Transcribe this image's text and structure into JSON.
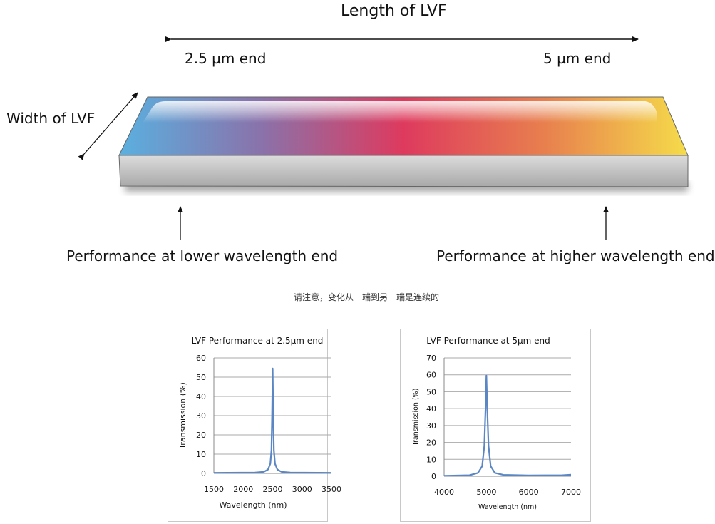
{
  "diagram": {
    "length_label": "Length of LVF",
    "width_label": "Width of LVF",
    "left_end_label": "2.5 µm end",
    "right_end_label": "5 µm end",
    "lower_perf_label": "Performance at lower wavelength end",
    "higher_perf_label": "Performance at higher wavelength end",
    "note": "请注意，变化从一端到另一端是连续的",
    "gradient_colors": [
      "#5ab0e0",
      "#8a72aa",
      "#de3a5e",
      "#e8804e",
      "#f5dc4a"
    ]
  },
  "chart_data": [
    {
      "type": "line",
      "title": "LVF Performance at 2.5µm end",
      "xlabel": "Wavelength (nm)",
      "ylabel": "Transmission (%)",
      "xlim": [
        1500,
        3500
      ],
      "ylim": [
        0,
        60
      ],
      "xticks": [
        "1500",
        "2000",
        "2500",
        "3000",
        "3500"
      ],
      "yticks": [
        "0",
        "10",
        "20",
        "30",
        "40",
        "50",
        "60"
      ],
      "grid": true,
      "color": "#5b86c4",
      "x": [
        1500,
        2200,
        2350,
        2420,
        2460,
        2480,
        2490,
        2500,
        2510,
        2520,
        2540,
        2580,
        2650,
        2800,
        3500
      ],
      "y": [
        0.3,
        0.4,
        0.8,
        2.0,
        5.0,
        12.0,
        30.0,
        54.5,
        30.0,
        12.0,
        5.0,
        2.0,
        0.8,
        0.4,
        0.3
      ]
    },
    {
      "type": "line",
      "title": "LVF Performance at 5µm end",
      "xlabel": "Wavelength (nm)",
      "ylabel": "Transmission (%)",
      "xlim": [
        4000,
        7000
      ],
      "ylim": [
        0,
        70
      ],
      "xticks": [
        "4000",
        "5000",
        "6000",
        "7000"
      ],
      "yticks": [
        "0",
        "10",
        "20",
        "30",
        "40",
        "50",
        "60",
        "70"
      ],
      "grid": true,
      "color": "#5b86c4",
      "x": [
        4000,
        4600,
        4800,
        4900,
        4950,
        4980,
        5000,
        5020,
        5050,
        5100,
        5200,
        5400,
        6000,
        6800,
        7000
      ],
      "y": [
        0.3,
        0.6,
        2.0,
        6.0,
        18.0,
        40.0,
        59.5,
        40.0,
        18.0,
        6.0,
        2.0,
        0.8,
        0.5,
        0.6,
        0.9
      ]
    }
  ]
}
